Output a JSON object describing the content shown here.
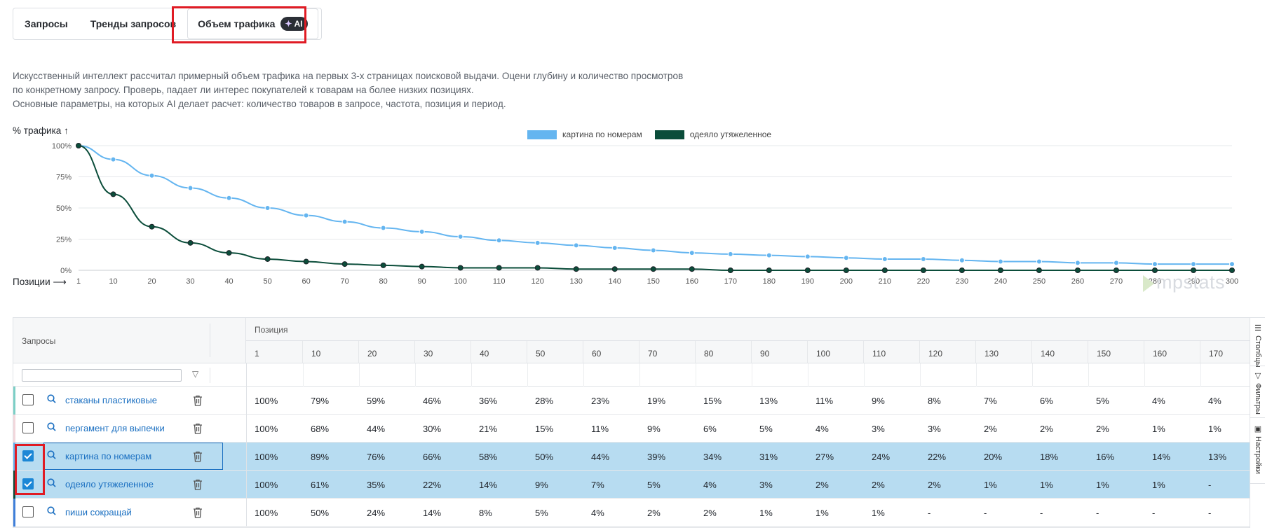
{
  "tabs": [
    {
      "label": "Запросы",
      "active": false
    },
    {
      "label": "Тренды запросов",
      "active": false
    },
    {
      "label": "Объем трафика",
      "active": true,
      "badge": "AI"
    }
  ],
  "description": [
    "Искусственный интеллект рассчитал примерный объем трафика на первых 3-х страницах поисковой выдачи. Оцени глубину и количество просмотров",
    "по конкретному запросу. Проверь, падает ли интерес покупателей к товарам на более низких позициях.",
    "Основные параметры, на которых AI делает расчет: количество товаров в запросе, частота, позиция и период."
  ],
  "chart_data": {
    "type": "line",
    "ylabel": "% трафика ↑",
    "xlabel": "Позиции ⟶",
    "ylim": [
      0,
      100
    ],
    "y_ticks": [
      "0%",
      "25%",
      "50%",
      "75%",
      "100%"
    ],
    "x": [
      1,
      10,
      20,
      30,
      40,
      50,
      60,
      70,
      80,
      90,
      100,
      110,
      120,
      130,
      140,
      150,
      160,
      170,
      180,
      190,
      200,
      210,
      220,
      230,
      240,
      250,
      260,
      270,
      280,
      290,
      300
    ],
    "legend_position": "top-center",
    "grid": true,
    "series": [
      {
        "name": "картина по номерам",
        "color": "#64b5f0",
        "values": [
          100,
          89,
          76,
          66,
          58,
          50,
          44,
          39,
          34,
          31,
          27,
          24,
          22,
          20,
          18,
          16,
          14,
          13,
          12,
          11,
          10,
          9,
          9,
          8,
          7,
          7,
          6,
          6,
          5,
          5,
          5
        ]
      },
      {
        "name": "одеяло утяжеленное",
        "color": "#0b4d3a",
        "values": [
          100,
          61,
          35,
          22,
          14,
          9,
          7,
          5,
          4,
          3,
          2,
          2,
          2,
          1,
          1,
          1,
          1,
          0,
          0,
          0,
          0,
          0,
          0,
          0,
          0,
          0,
          0,
          0,
          0,
          0,
          0
        ]
      }
    ]
  },
  "watermark": "mpstats",
  "table": {
    "left_header": "Запросы",
    "group_header": "Позиция",
    "columns": [
      "1",
      "10",
      "20",
      "30",
      "40",
      "50",
      "60",
      "70",
      "80",
      "90",
      "100",
      "110",
      "120",
      "130",
      "140",
      "150",
      "160",
      "170"
    ],
    "rows": [
      {
        "query": "стаканы пластиковые",
        "checked": false,
        "accent": "#7ccfc6",
        "values": [
          "100%",
          "79%",
          "59%",
          "46%",
          "36%",
          "28%",
          "23%",
          "19%",
          "15%",
          "13%",
          "11%",
          "9%",
          "8%",
          "7%",
          "6%",
          "5%",
          "4%",
          "4%"
        ]
      },
      {
        "query": "пергамент для выпечки",
        "checked": false,
        "accent": "#f2d7dc",
        "values": [
          "100%",
          "68%",
          "44%",
          "30%",
          "21%",
          "15%",
          "11%",
          "9%",
          "6%",
          "5%",
          "4%",
          "3%",
          "3%",
          "2%",
          "2%",
          "2%",
          "1%",
          "1%"
        ]
      },
      {
        "query": "картина по номерам",
        "checked": true,
        "accent": "#64b5f0",
        "values": [
          "100%",
          "89%",
          "76%",
          "66%",
          "58%",
          "50%",
          "44%",
          "39%",
          "34%",
          "31%",
          "27%",
          "24%",
          "22%",
          "20%",
          "18%",
          "16%",
          "14%",
          "13%"
        ]
      },
      {
        "query": "одеяло утяжеленное",
        "checked": true,
        "accent": "#0b4d3a",
        "values": [
          "100%",
          "61%",
          "35%",
          "22%",
          "14%",
          "9%",
          "7%",
          "5%",
          "4%",
          "3%",
          "2%",
          "2%",
          "2%",
          "1%",
          "1%",
          "1%",
          "1%",
          "-"
        ]
      },
      {
        "query": "пиши сокращай",
        "checked": false,
        "accent": "#3f7fd9",
        "values": [
          "100%",
          "50%",
          "24%",
          "14%",
          "8%",
          "5%",
          "4%",
          "2%",
          "2%",
          "1%",
          "1%",
          "1%",
          "-",
          "-",
          "-",
          "-",
          "-",
          "-"
        ]
      }
    ]
  },
  "sidebar": {
    "columns": "Столбцы",
    "filters": "Фильтры",
    "settings": "Настройки"
  }
}
